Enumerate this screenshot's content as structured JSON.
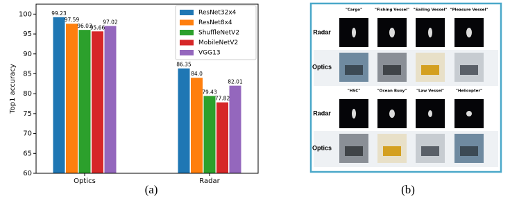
{
  "chart_data": {
    "type": "bar",
    "ylabel": "Top1 accuracy",
    "categories": [
      "Optics",
      "Radar"
    ],
    "series": [
      {
        "name": "ResNet32x4",
        "color": "#1f77b4",
        "values": [
          99.23,
          86.35
        ],
        "value_labels": [
          "99.23",
          "86.35"
        ]
      },
      {
        "name": "ResNet8x4",
        "color": "#ff7f0e",
        "values": [
          97.59,
          84.0
        ],
        "value_labels": [
          "97.59",
          "84.0"
        ]
      },
      {
        "name": "ShuffleNetV2",
        "color": "#2ca02c",
        "values": [
          96.03,
          79.43
        ],
        "value_labels": [
          "96.03",
          "79.43"
        ]
      },
      {
        "name": "MobileNetV2",
        "color": "#d62728",
        "values": [
          95.66,
          77.82
        ],
        "value_labels": [
          "95.66",
          "77.82"
        ]
      },
      {
        "name": "VGG13",
        "color": "#9467bd",
        "values": [
          97.02,
          82.01
        ],
        "value_labels": [
          "97.02",
          "82.01"
        ]
      }
    ],
    "ylim": [
      60,
      102.5
    ],
    "yticks": [
      60,
      65,
      70,
      75,
      80,
      85,
      90,
      95,
      100
    ],
    "legend": "upper right",
    "caption": "(a)"
  },
  "panel_b": {
    "caption": "(b)",
    "blocks": [
      {
        "columns": [
          "\"Cargo\"",
          "\"Fishing Vessel\"",
          "\"Sailing Vessel\"",
          "\"Pleasure Vessel\""
        ],
        "rows": [
          "Radar",
          "Optics"
        ]
      },
      {
        "columns": [
          "\"HSC\"",
          "\"Ocean Buoy\"",
          "\"Law Vessel\"",
          "\"Helicopter\""
        ],
        "rows": [
          "Radar",
          "Optics"
        ]
      }
    ]
  }
}
